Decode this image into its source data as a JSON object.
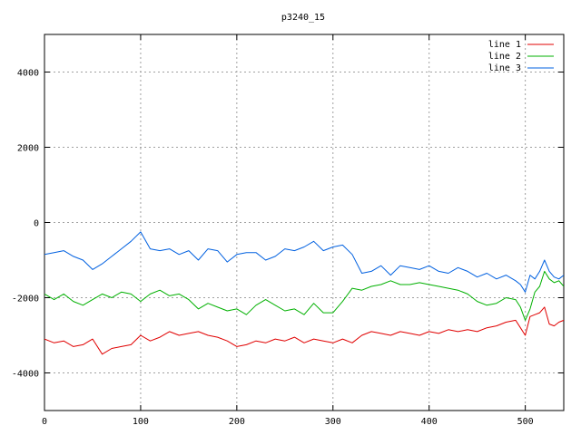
{
  "chart_data": {
    "type": "line",
    "title": "p3240_15",
    "xlabel": "",
    "ylabel": "",
    "xlim": [
      0,
      540
    ],
    "ylim": [
      -5000,
      5000
    ],
    "x_ticks": [
      0,
      100,
      200,
      300,
      400,
      500
    ],
    "y_ticks": [
      -4000,
      -2000,
      0,
      2000,
      4000
    ],
    "grid": true,
    "legend_position": "top-right",
    "series": [
      {
        "name": "line 1",
        "color": "#e00000",
        "x": [
          0,
          10,
          20,
          30,
          40,
          50,
          60,
          70,
          80,
          90,
          100,
          110,
          120,
          130,
          140,
          150,
          160,
          170,
          180,
          190,
          200,
          210,
          220,
          230,
          240,
          250,
          260,
          270,
          280,
          290,
          300,
          310,
          320,
          330,
          340,
          350,
          360,
          370,
          380,
          390,
          400,
          410,
          420,
          430,
          440,
          450,
          460,
          470,
          480,
          490,
          495,
          500,
          505,
          510,
          515,
          520,
          525,
          530,
          535,
          540
        ],
        "values": [
          -3100,
          -3200,
          -3150,
          -3300,
          -3250,
          -3100,
          -3500,
          -3350,
          -3300,
          -3250,
          -3000,
          -3150,
          -3050,
          -2900,
          -3000,
          -2950,
          -2900,
          -3000,
          -3050,
          -3150,
          -3300,
          -3250,
          -3150,
          -3200,
          -3100,
          -3150,
          -3050,
          -3200,
          -3100,
          -3150,
          -3200,
          -3100,
          -3200,
          -3000,
          -2900,
          -2950,
          -3000,
          -2900,
          -2950,
          -3000,
          -2900,
          -2950,
          -2850,
          -2900,
          -2850,
          -2900,
          -2800,
          -2750,
          -2650,
          -2600,
          -2800,
          -3000,
          -2500,
          -2450,
          -2400,
          -2250,
          -2700,
          -2750,
          -2650,
          -2600
        ]
      },
      {
        "name": "line 2",
        "color": "#00b000",
        "x": [
          0,
          10,
          20,
          30,
          40,
          50,
          60,
          70,
          80,
          90,
          100,
          110,
          120,
          130,
          140,
          150,
          160,
          170,
          180,
          190,
          200,
          210,
          220,
          230,
          240,
          250,
          260,
          270,
          280,
          290,
          300,
          310,
          320,
          330,
          340,
          350,
          360,
          370,
          380,
          390,
          400,
          410,
          420,
          430,
          440,
          450,
          460,
          470,
          480,
          490,
          495,
          500,
          505,
          510,
          515,
          520,
          525,
          530,
          535,
          540
        ],
        "values": [
          -1900,
          -2050,
          -1900,
          -2100,
          -2200,
          -2050,
          -1900,
          -2000,
          -1850,
          -1900,
          -2100,
          -1900,
          -1800,
          -1950,
          -1900,
          -2050,
          -2300,
          -2150,
          -2250,
          -2350,
          -2300,
          -2450,
          -2200,
          -2050,
          -2200,
          -2350,
          -2300,
          -2450,
          -2150,
          -2400,
          -2400,
          -2100,
          -1750,
          -1800,
          -1700,
          -1650,
          -1550,
          -1650,
          -1650,
          -1600,
          -1650,
          -1700,
          -1750,
          -1800,
          -1900,
          -2100,
          -2200,
          -2150,
          -2000,
          -2050,
          -2250,
          -2600,
          -2300,
          -1850,
          -1700,
          -1300,
          -1500,
          -1600,
          -1550,
          -1700
        ]
      },
      {
        "name": "line 3",
        "color": "#0060e0",
        "x": [
          0,
          10,
          20,
          30,
          40,
          50,
          60,
          70,
          80,
          90,
          100,
          110,
          120,
          130,
          140,
          150,
          160,
          170,
          180,
          190,
          200,
          210,
          220,
          230,
          240,
          250,
          260,
          270,
          280,
          290,
          300,
          310,
          320,
          330,
          340,
          350,
          360,
          370,
          380,
          390,
          400,
          410,
          420,
          430,
          440,
          450,
          460,
          470,
          480,
          490,
          495,
          500,
          505,
          510,
          515,
          520,
          525,
          530,
          535,
          540
        ],
        "values": [
          -850,
          -800,
          -750,
          -900,
          -1000,
          -1250,
          -1100,
          -900,
          -700,
          -500,
          -250,
          -700,
          -750,
          -700,
          -850,
          -750,
          -1000,
          -700,
          -750,
          -1050,
          -850,
          -800,
          -800,
          -1000,
          -900,
          -700,
          -750,
          -650,
          -500,
          -750,
          -650,
          -600,
          -850,
          -1350,
          -1300,
          -1150,
          -1400,
          -1150,
          -1200,
          -1250,
          -1150,
          -1300,
          -1350,
          -1200,
          -1300,
          -1450,
          -1350,
          -1500,
          -1400,
          -1550,
          -1650,
          -1850,
          -1400,
          -1500,
          -1300,
          -1000,
          -1300,
          -1450,
          -1500,
          -1400
        ]
      }
    ]
  }
}
